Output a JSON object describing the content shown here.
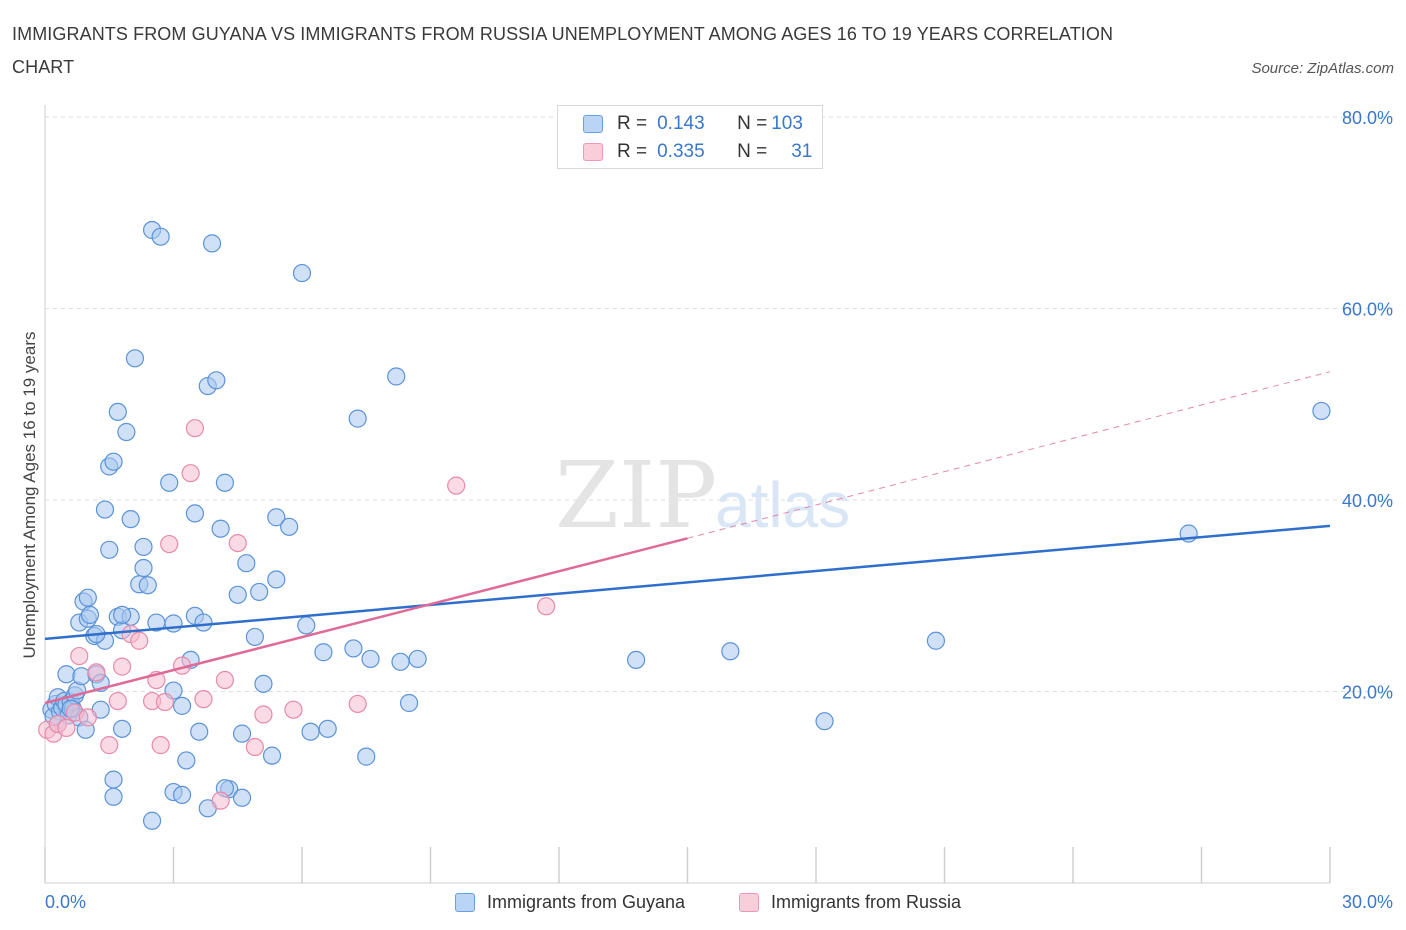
{
  "title": "IMMIGRANTS FROM GUYANA VS IMMIGRANTS FROM RUSSIA UNEMPLOYMENT AMONG AGES 16 TO 19 YEARS CORRELATION CHART",
  "source": "Source: ZipAtlas.com",
  "watermark": {
    "zip": "ZIP",
    "atlas": "atlas"
  },
  "legend": {
    "r_label": "R =",
    "n_label": "N =",
    "guyana": {
      "r": "0.143",
      "n": "103"
    },
    "russia": {
      "r": "0.335",
      "n": "31"
    }
  },
  "colors": {
    "guyana_fill": "#a9c8f0",
    "guyana_stroke": "#5b93d8",
    "guyana_line": "#2f6fcb",
    "russia_fill": "#f6bccf",
    "russia_stroke": "#e78aa9",
    "russia_line": "#e06a97",
    "axis_text": "#3a78c9",
    "grid": "#dddddd"
  },
  "chart_data": {
    "type": "scatter",
    "title": "IMMIGRANTS FROM GUYANA VS IMMIGRANTS FROM RUSSIA UNEMPLOYMENT AMONG AGES 16 TO 19 YEARS CORRELATION CHART",
    "xlabel": "",
    "ylabel": "Unemployment Among Ages 16 to 19 years",
    "xlim": [
      0,
      30
    ],
    "ylim": [
      0,
      80
    ],
    "x_tick_labels": [
      "0.0%",
      "30.0%"
    ],
    "y_ticks": [
      20,
      40,
      60,
      80
    ],
    "y_tick_labels": [
      "20.0%",
      "40.0%",
      "60.0%",
      "80.0%"
    ],
    "legend_position": "bottom-center",
    "series": [
      {
        "name": "Immigrants from Guyana",
        "trend": {
          "x": [
            0,
            30
          ],
          "y": [
            25.5,
            37.3
          ],
          "dashed_extension": false
        },
        "points": [
          [
            0.15,
            18.1
          ],
          [
            0.2,
            17.4
          ],
          [
            0.25,
            18.7
          ],
          [
            0.3,
            19.4
          ],
          [
            0.35,
            17.9
          ],
          [
            0.4,
            18.3
          ],
          [
            0.45,
            19.0
          ],
          [
            0.5,
            18.6
          ],
          [
            0.55,
            17.5
          ],
          [
            0.6,
            18.9
          ],
          [
            0.65,
            18.2
          ],
          [
            0.7,
            19.6
          ],
          [
            0.8,
            17.3
          ],
          [
            0.3,
            16.6
          ],
          [
            0.5,
            21.8
          ],
          [
            0.6,
            18.2
          ],
          [
            0.75,
            20.1
          ],
          [
            0.85,
            21.6
          ],
          [
            0.95,
            16.0
          ],
          [
            0.8,
            27.2
          ],
          [
            0.9,
            29.4
          ],
          [
            1.0,
            27.6
          ],
          [
            1.05,
            28.0
          ],
          [
            1.15,
            25.8
          ],
          [
            1.2,
            21.8
          ],
          [
            1.3,
            18.1
          ],
          [
            1.3,
            20.9
          ],
          [
            1.4,
            25.3
          ],
          [
            1.4,
            39.0
          ],
          [
            1.5,
            34.8
          ],
          [
            1.5,
            43.5
          ],
          [
            1.6,
            44.0
          ],
          [
            1.7,
            27.8
          ],
          [
            1.7,
            49.2
          ],
          [
            1.8,
            16.1
          ],
          [
            1.8,
            26.4
          ],
          [
            1.9,
            47.1
          ],
          [
            2.0,
            27.8
          ],
          [
            2.0,
            38.0
          ],
          [
            2.1,
            54.8
          ],
          [
            2.2,
            31.2
          ],
          [
            2.3,
            35.1
          ],
          [
            2.3,
            32.9
          ],
          [
            2.4,
            31.1
          ],
          [
            2.5,
            68.2
          ],
          [
            2.7,
            67.5
          ],
          [
            2.9,
            41.8
          ],
          [
            3.0,
            27.1
          ],
          [
            3.0,
            20.1
          ],
          [
            3.2,
            18.5
          ],
          [
            3.3,
            12.8
          ],
          [
            3.4,
            23.3
          ],
          [
            3.5,
            27.9
          ],
          [
            3.5,
            38.6
          ],
          [
            3.6,
            15.8
          ],
          [
            3.8,
            51.9
          ],
          [
            3.9,
            66.8
          ],
          [
            4.0,
            52.5
          ],
          [
            4.1,
            37.0
          ],
          [
            4.2,
            41.8
          ],
          [
            4.3,
            9.8
          ],
          [
            4.5,
            30.1
          ],
          [
            4.6,
            15.6
          ],
          [
            4.7,
            33.4
          ],
          [
            4.9,
            25.7
          ],
          [
            5.0,
            30.4
          ],
          [
            5.1,
            20.8
          ],
          [
            5.3,
            13.3
          ],
          [
            5.4,
            38.2
          ],
          [
            5.4,
            31.7
          ],
          [
            5.7,
            37.2
          ],
          [
            6.0,
            63.7
          ],
          [
            6.1,
            26.9
          ],
          [
            6.2,
            15.8
          ],
          [
            6.5,
            24.1
          ],
          [
            6.6,
            16.1
          ],
          [
            7.2,
            24.5
          ],
          [
            7.3,
            48.5
          ],
          [
            7.5,
            13.2
          ],
          [
            7.6,
            23.4
          ],
          [
            8.2,
            52.9
          ],
          [
            8.3,
            23.1
          ],
          [
            8.5,
            18.8
          ],
          [
            8.7,
            23.4
          ],
          [
            1.6,
            10.8
          ],
          [
            1.6,
            9.0
          ],
          [
            2.5,
            6.5
          ],
          [
            3.0,
            9.5
          ],
          [
            3.2,
            9.2
          ],
          [
            3.8,
            7.8
          ],
          [
            4.2,
            9.9
          ],
          [
            4.6,
            8.9
          ],
          [
            13.8,
            23.3
          ],
          [
            16.0,
            24.2
          ],
          [
            18.2,
            16.9
          ],
          [
            20.8,
            25.3
          ],
          [
            26.7,
            36.5
          ],
          [
            29.8,
            49.3
          ],
          [
            1.0,
            29.8
          ],
          [
            1.8,
            28.0
          ],
          [
            2.6,
            27.2
          ],
          [
            3.7,
            27.2
          ],
          [
            1.2,
            26.0
          ]
        ]
      },
      {
        "name": "Immigrants from Russia",
        "trend": {
          "x": [
            0,
            15
          ],
          "y": [
            18.8,
            36.0
          ],
          "dashed_extension": true,
          "dashed_to": {
            "x": 30,
            "y": 53.4
          }
        },
        "points": [
          [
            0.05,
            16.0
          ],
          [
            0.2,
            15.6
          ],
          [
            0.3,
            16.6
          ],
          [
            0.5,
            16.2
          ],
          [
            0.7,
            17.8
          ],
          [
            0.8,
            23.7
          ],
          [
            1.0,
            17.3
          ],
          [
            1.2,
            22.0
          ],
          [
            1.5,
            14.4
          ],
          [
            1.7,
            19.0
          ],
          [
            1.8,
            22.6
          ],
          [
            2.0,
            26.0
          ],
          [
            2.2,
            25.3
          ],
          [
            2.5,
            19.0
          ],
          [
            2.6,
            21.2
          ],
          [
            2.7,
            14.4
          ],
          [
            2.8,
            18.9
          ],
          [
            2.9,
            35.4
          ],
          [
            3.2,
            22.7
          ],
          [
            3.4,
            42.8
          ],
          [
            3.5,
            47.5
          ],
          [
            3.7,
            19.2
          ],
          [
            4.1,
            8.6
          ],
          [
            4.2,
            21.2
          ],
          [
            4.5,
            35.5
          ],
          [
            4.9,
            14.2
          ],
          [
            5.1,
            17.6
          ],
          [
            5.8,
            18.1
          ],
          [
            7.3,
            18.7
          ],
          [
            9.6,
            41.5
          ],
          [
            11.7,
            28.9
          ]
        ]
      }
    ]
  },
  "bottom_legend": {
    "guyana": "Immigrants from Guyana",
    "russia": "Immigrants from Russia"
  }
}
